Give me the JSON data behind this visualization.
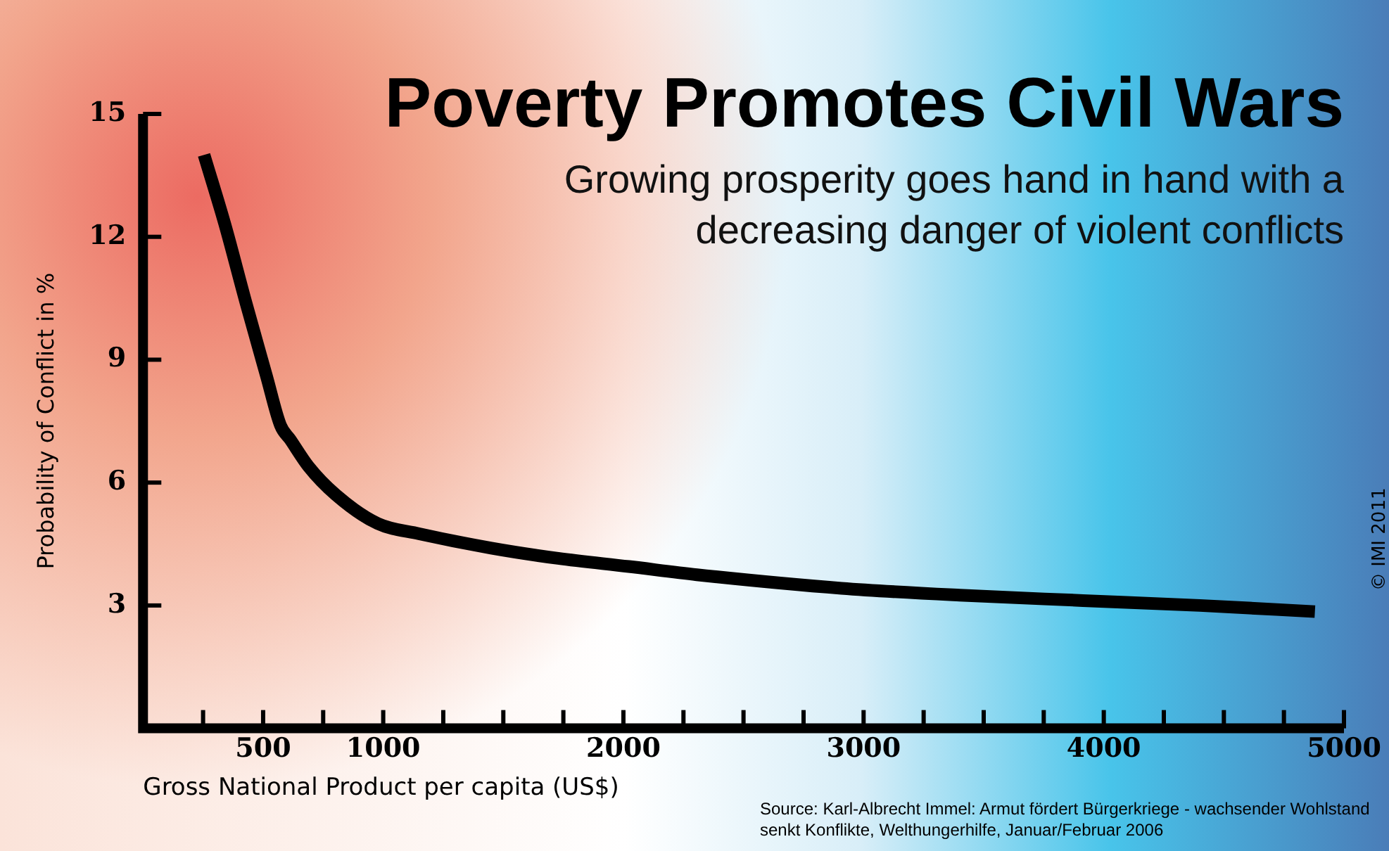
{
  "chart_data": {
    "type": "line",
    "title": "Poverty Promotes Civil Wars",
    "subtitle": "Growing prosperity goes hand in hand with a decreasing danger of violent conflicts",
    "xlabel": "Gross National Product per capita (US$)",
    "ylabel": "Probability of Conflict in %",
    "annotations": [
      "Source: Karl-Albrecht Immel: Armut fördert Bürgerkriege - wachsender Wohlstand senkt Konflikte, Welthungerhilfe, Januar/Februar 2006",
      "© IMI 2011"
    ],
    "series": [
      {
        "color": "#000000",
        "x": [
          254,
          341,
          428,
          514,
          572,
          613,
          688,
          803,
          977,
          1150,
          1450,
          1728,
          2023,
          2306,
          2908,
          3400,
          3913,
          4400,
          4879
        ],
        "values": [
          14.0,
          12.3,
          10.4,
          8.6,
          7.4,
          7.05,
          6.4,
          5.7,
          5.0,
          4.75,
          4.4,
          4.15,
          3.95,
          3.75,
          3.42,
          3.25,
          3.12,
          3.0,
          2.85
        ]
      }
    ],
    "xlim": [
      0,
      5000
    ],
    "ylim": [
      0,
      15
    ],
    "xticks": [
      {
        "value": 250,
        "label": null
      },
      500,
      {
        "value": 750,
        "label": null
      },
      1000,
      {
        "value": 1250,
        "label": null
      },
      {
        "value": 1500,
        "label": null
      },
      {
        "value": 1750,
        "label": null
      },
      2000,
      {
        "value": 2250,
        "label": null
      },
      {
        "value": 2500,
        "label": null
      },
      {
        "value": 2750,
        "label": null
      },
      3000,
      {
        "value": 3250,
        "label": null
      },
      {
        "value": 3500,
        "label": null
      },
      {
        "value": 3750,
        "label": null
      },
      4000,
      {
        "value": 4250,
        "label": null
      },
      {
        "value": 4500,
        "label": null
      },
      {
        "value": 4750,
        "label": null
      },
      5000
    ],
    "yticks": [
      3,
      6,
      9,
      12,
      15
    ],
    "grid": false,
    "legend": false,
    "marker": "none",
    "line_style": "solid"
  }
}
